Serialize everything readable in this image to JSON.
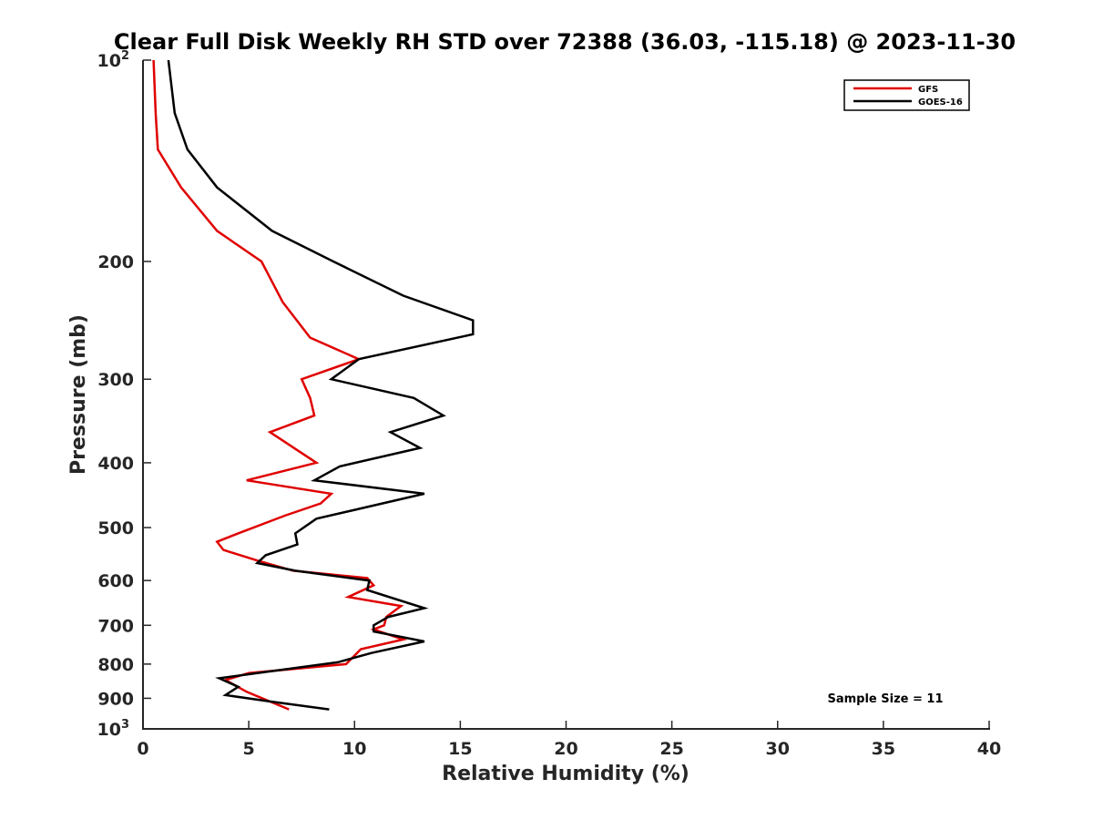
{
  "chart_data": {
    "type": "line",
    "title": "Clear Full Disk Weekly RH STD over 72388 (36.03, -115.18) @ 2023-11-30",
    "xlabel": "Relative Humidity (%)",
    "ylabel": "Pressure (mb)",
    "xlim": [
      0,
      40
    ],
    "ylim": [
      100,
      1000
    ],
    "y_scale": "log",
    "y_reversed": true,
    "xticks": [
      {
        "value": 0,
        "label": "0"
      },
      {
        "value": 5,
        "label": "5"
      },
      {
        "value": 10,
        "label": "10"
      },
      {
        "value": 15,
        "label": "15"
      },
      {
        "value": 20,
        "label": "20"
      },
      {
        "value": 25,
        "label": "25"
      },
      {
        "value": 30,
        "label": "30"
      },
      {
        "value": 35,
        "label": "35"
      },
      {
        "value": 40,
        "label": "40"
      }
    ],
    "yticks": [
      {
        "value": 100,
        "label": "10",
        "sup": "2"
      },
      {
        "value": 200,
        "label": "200"
      },
      {
        "value": 300,
        "label": "300"
      },
      {
        "value": 400,
        "label": "400"
      },
      {
        "value": 500,
        "label": "500"
      },
      {
        "value": 600,
        "label": "600"
      },
      {
        "value": 700,
        "label": "700"
      },
      {
        "value": 800,
        "label": "800"
      },
      {
        "value": 900,
        "label": "900"
      },
      {
        "value": 1000,
        "label": "10",
        "sup": "3"
      }
    ],
    "grid": false,
    "legend_position": "top-right",
    "annotation": "Sample Size = 11",
    "series": [
      {
        "name": "GFS",
        "color": "#e00000",
        "points": [
          [
            0.5,
            100
          ],
          [
            0.6,
            120
          ],
          [
            0.7,
            136
          ],
          [
            1.8,
            155
          ],
          [
            3.5,
            180
          ],
          [
            5.6,
            200
          ],
          [
            6.6,
            230
          ],
          [
            7.9,
            260
          ],
          [
            10.2,
            280
          ],
          [
            7.5,
            300
          ],
          [
            7.9,
            320
          ],
          [
            8.1,
            340
          ],
          [
            6.0,
            360
          ],
          [
            8.2,
            400
          ],
          [
            4.9,
            425
          ],
          [
            8.9,
            445
          ],
          [
            8.4,
            460
          ],
          [
            6.7,
            480
          ],
          [
            4.5,
            510
          ],
          [
            3.5,
            525
          ],
          [
            3.8,
            540
          ],
          [
            5.4,
            560
          ],
          [
            7.1,
            580
          ],
          [
            10.6,
            595
          ],
          [
            10.9,
            610
          ],
          [
            9.7,
            635
          ],
          [
            12.2,
            655
          ],
          [
            11.5,
            680
          ],
          [
            11.4,
            700
          ],
          [
            10.9,
            710
          ],
          [
            12.3,
            735
          ],
          [
            10.3,
            760
          ],
          [
            9.6,
            800
          ],
          [
            5.0,
            825
          ],
          [
            3.9,
            845
          ],
          [
            4.9,
            880
          ],
          [
            6.9,
            935
          ]
        ]
      },
      {
        "name": "GOES-16",
        "color": "#000000",
        "points": [
          [
            1.2,
            100
          ],
          [
            1.5,
            120
          ],
          [
            2.1,
            136
          ],
          [
            3.5,
            155
          ],
          [
            6.1,
            180
          ],
          [
            9.0,
            200
          ],
          [
            12.3,
            225
          ],
          [
            15.6,
            245
          ],
          [
            15.6,
            257
          ],
          [
            10.2,
            280
          ],
          [
            8.9,
            300
          ],
          [
            12.8,
            320
          ],
          [
            14.2,
            340
          ],
          [
            11.7,
            360
          ],
          [
            13.1,
            380
          ],
          [
            9.3,
            405
          ],
          [
            8.1,
            425
          ],
          [
            13.3,
            445
          ],
          [
            8.2,
            485
          ],
          [
            7.2,
            510
          ],
          [
            7.3,
            530
          ],
          [
            5.8,
            550
          ],
          [
            5.4,
            565
          ],
          [
            7.2,
            580
          ],
          [
            10.7,
            600
          ],
          [
            10.6,
            620
          ],
          [
            13.3,
            660
          ],
          [
            11.6,
            680
          ],
          [
            10.9,
            700
          ],
          [
            10.9,
            715
          ],
          [
            13.3,
            740
          ],
          [
            10.8,
            770
          ],
          [
            9.2,
            795
          ],
          [
            5.8,
            822
          ],
          [
            3.6,
            840
          ],
          [
            4.5,
            865
          ],
          [
            3.9,
            890
          ],
          [
            6.0,
            910
          ],
          [
            8.8,
            935
          ]
        ]
      }
    ]
  }
}
